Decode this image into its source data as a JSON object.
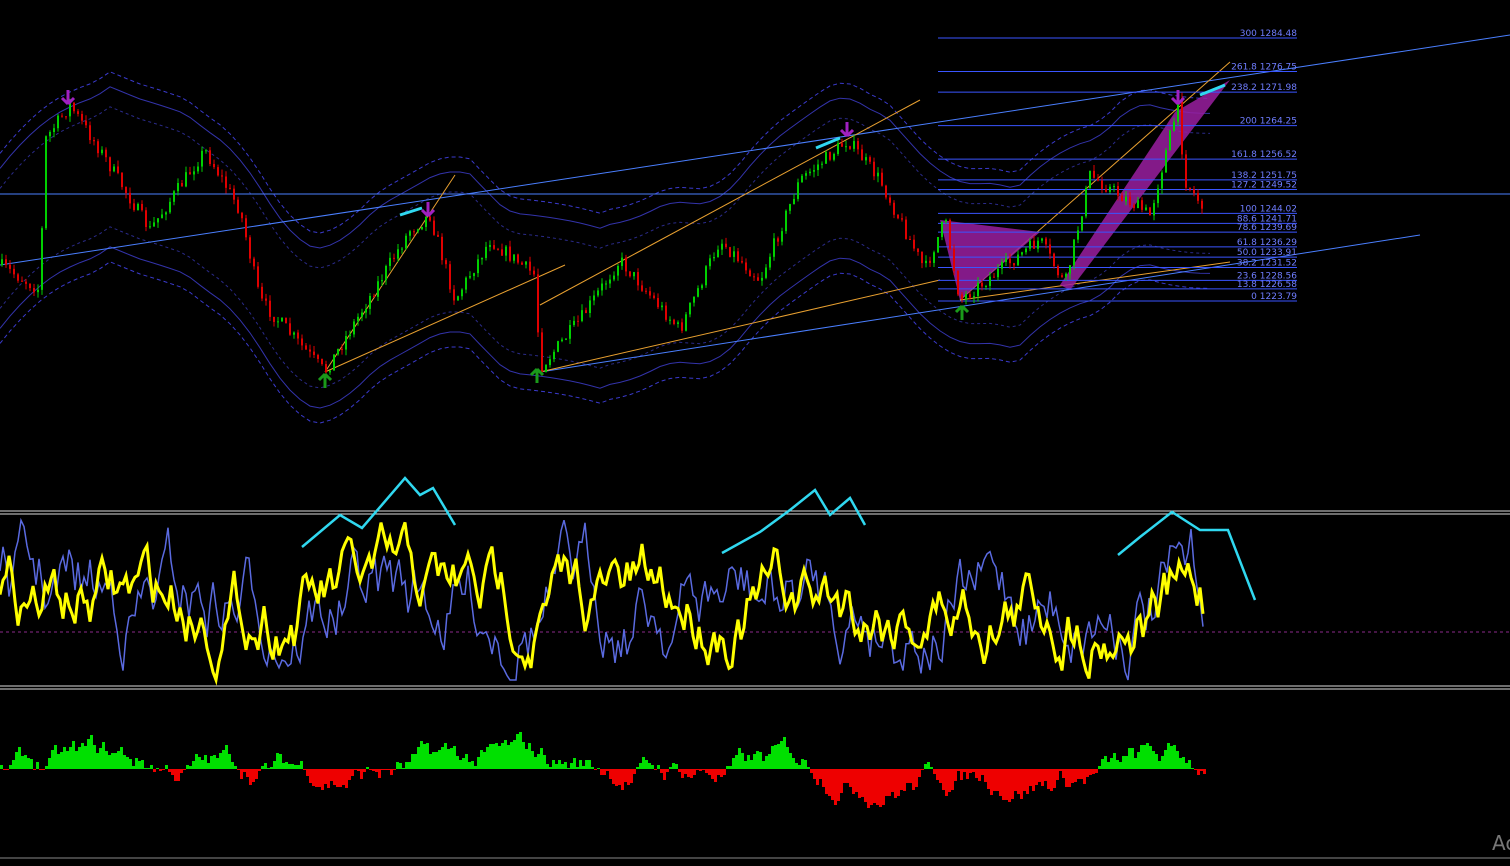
{
  "fibonacci_levels": [
    {
      "ratio": "300",
      "price": 1284.48
    },
    {
      "ratio": "261.8",
      "price": 1276.75
    },
    {
      "ratio": "238.2",
      "price": 1271.98
    },
    {
      "ratio": "200",
      "price": 1264.25
    },
    {
      "ratio": "161.8",
      "price": 1256.52
    },
    {
      "ratio": "138.2",
      "price": 1251.75
    },
    {
      "ratio": "127.2",
      "price": 1249.52
    },
    {
      "ratio": "100",
      "price": 1244.02
    },
    {
      "ratio": "88.6",
      "price": 1241.71
    },
    {
      "ratio": "78.6",
      "price": 1239.69
    },
    {
      "ratio": "61.8",
      "price": 1236.29
    },
    {
      "ratio": "50.0",
      "price": 1233.91
    },
    {
      "ratio": "38.2",
      "price": 1231.52
    },
    {
      "ratio": "23.6",
      "price": 1228.56
    },
    {
      "ratio": "13.8",
      "price": 1226.58
    },
    {
      "ratio": "0",
      "price": 1223.79
    }
  ],
  "watermark": "Ac"
}
